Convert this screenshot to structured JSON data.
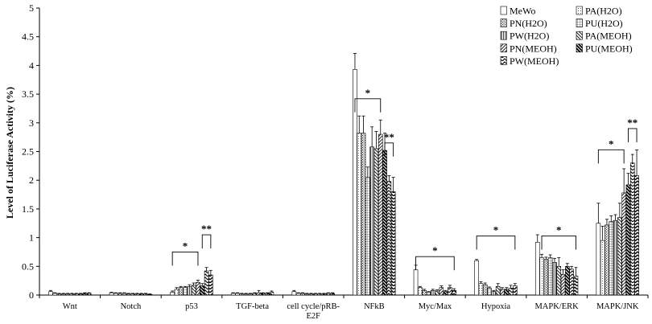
{
  "chart_data": {
    "type": "bar",
    "title": "",
    "xlabel": "",
    "ylabel": "Level of Luciferase Activity (%)",
    "ylim": [
      0,
      5
    ],
    "yticks": [
      "0",
      "0.5",
      "1",
      "1.5",
      "2",
      "2.5",
      "3",
      "3.5",
      "4",
      "4.5",
      "5"
    ],
    "grid": false,
    "legend_position": "top-right",
    "categories": [
      "Wnt",
      "Notch",
      "p53",
      "TGF-beta",
      "cell cycle/pRB-\nE2F",
      "NFkB",
      "Myc/Max",
      "Hypoxia",
      "MAPK/ERK",
      "MAPK/JNK"
    ],
    "series": [
      {
        "name": "MeWo",
        "pattern": "plain",
        "values": [
          0.06,
          0.04,
          0.05,
          0.03,
          0.06,
          3.93,
          0.44,
          0.6,
          0.92,
          1.25
        ],
        "errors": [
          0.02,
          0.01,
          0.02,
          0.01,
          0.02,
          0.28,
          0.08,
          0.02,
          0.13,
          0.35
        ]
      },
      {
        "name": "PA(H2O)",
        "pattern": "fine-dots",
        "values": [
          0.03,
          0.03,
          0.1,
          0.03,
          0.03,
          2.82,
          0.13,
          0.2,
          0.65,
          0.95
        ],
        "errors": [
          0.01,
          0.01,
          0.03,
          0.01,
          0.01,
          0.3,
          0.02,
          0.03,
          0.06,
          0.25
        ]
      },
      {
        "name": "PN(H2O)",
        "pattern": "dots",
        "values": [
          0.02,
          0.03,
          0.13,
          0.02,
          0.03,
          2.82,
          0.08,
          0.18,
          0.62,
          1.22
        ],
        "errors": [
          0.01,
          0.01,
          0.02,
          0.01,
          0.01,
          0.3,
          0.02,
          0.03,
          0.04,
          0.1
        ]
      },
      {
        "name": "PU(H2O)",
        "pattern": "grid",
        "values": [
          0.02,
          0.03,
          0.13,
          0.02,
          0.02,
          2.05,
          0.05,
          0.12,
          0.65,
          1.28
        ],
        "errors": [
          0.01,
          0.01,
          0.02,
          0.01,
          0.01,
          0.18,
          0.01,
          0.02,
          0.05,
          0.1
        ]
      },
      {
        "name": "PW(H2O)",
        "pattern": "vlines",
        "values": [
          0.02,
          0.02,
          0.15,
          0.02,
          0.02,
          2.58,
          0.08,
          0.06,
          0.57,
          1.3
        ],
        "errors": [
          0.01,
          0.01,
          0.03,
          0.01,
          0.01,
          0.35,
          0.02,
          0.02,
          0.07,
          0.1
        ]
      },
      {
        "name": "PA(MEOH)",
        "pattern": "hatch-back",
        "values": [
          0.02,
          0.02,
          0.17,
          0.03,
          0.02,
          2.55,
          0.07,
          0.15,
          0.5,
          1.35
        ],
        "errors": [
          0.01,
          0.01,
          0.04,
          0.01,
          0.01,
          0.3,
          0.02,
          0.05,
          0.15,
          0.25
        ]
      },
      {
        "name": "PN(MEOH)",
        "pattern": "hatch-fwd",
        "values": [
          0.02,
          0.02,
          0.22,
          0.04,
          0.02,
          2.8,
          0.13,
          0.1,
          0.36,
          1.78
        ],
        "errors": [
          0.01,
          0.01,
          0.04,
          0.04,
          0.01,
          0.25,
          0.03,
          0.03,
          0.08,
          0.42
        ]
      },
      {
        "name": "PU(MEOH)",
        "pattern": "hatch-bold",
        "values": [
          0.02,
          0.02,
          0.16,
          0.03,
          0.02,
          2.52,
          0.06,
          0.1,
          0.5,
          1.92
        ],
        "errors": [
          0.01,
          0.01,
          0.04,
          0.01,
          0.01,
          0.3,
          0.02,
          0.03,
          0.05,
          0.2
        ]
      },
      {
        "name": "PW(MEOH)",
        "pattern": "chevron",
        "values": [
          0.03,
          0.02,
          0.42,
          0.03,
          0.03,
          1.98,
          0.13,
          0.12,
          0.45,
          2.3
        ],
        "errors": [
          0.01,
          0.01,
          0.06,
          0.01,
          0.01,
          0.1,
          0.04,
          0.05,
          0.05,
          0.15
        ]
      },
      {
        "name": "",
        "pattern": "zigzag",
        "values": [
          0.03,
          0.01,
          0.35,
          0.05,
          0.03,
          1.8,
          0.08,
          0.16,
          0.33,
          2.08
        ],
        "errors": [
          0.01,
          0.01,
          0.08,
          0.02,
          0.01,
          0.25,
          0.03,
          0.04,
          0.15,
          0.45
        ]
      }
    ],
    "significance": [
      {
        "category": "p53",
        "from": 0,
        "to": 6,
        "label": "*",
        "level": 0.75
      },
      {
        "category": "p53",
        "from": 7,
        "to": 9,
        "label": "**",
        "level": 1.05
      },
      {
        "category": "NFkB",
        "from": 0,
        "to": 6,
        "label": "*",
        "level": 3.42
      },
      {
        "category": "NFkB",
        "from": 7,
        "to": 9,
        "label": "**",
        "level": 2.65
      },
      {
        "category": "Myc/Max",
        "from": 0,
        "to": 9,
        "label": "*",
        "level": 0.67
      },
      {
        "category": "Hypoxia",
        "from": 0,
        "to": 9,
        "label": "*",
        "level": 1.03
      },
      {
        "category": "MAPK/ERK",
        "from": 1,
        "to": 9,
        "label": "*",
        "level": 1.03
      },
      {
        "category": "MAPK/JNK",
        "from": 0,
        "to": 6,
        "label": "*",
        "level": 2.53
      },
      {
        "category": "MAPK/JNK",
        "from": 7,
        "to": 9,
        "label": "**",
        "level": 2.9
      }
    ]
  }
}
